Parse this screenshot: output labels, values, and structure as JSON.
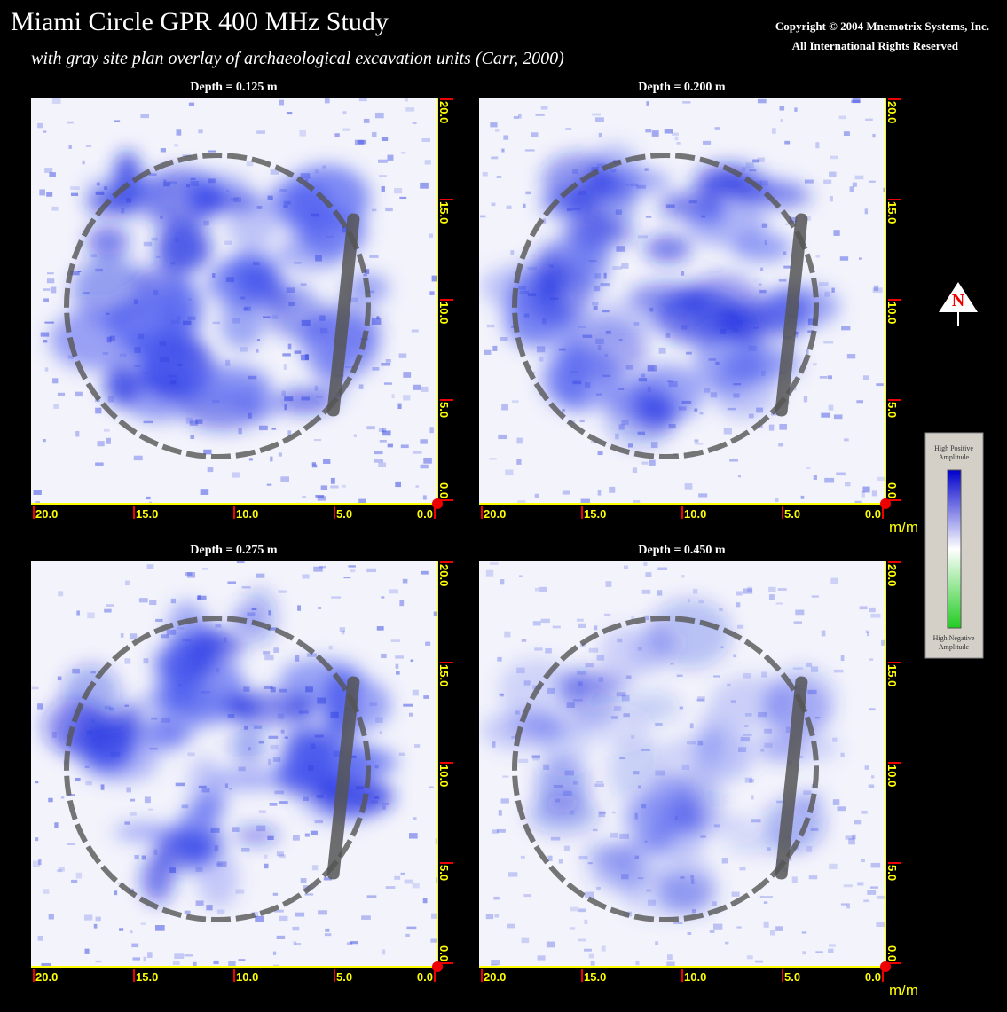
{
  "header": {
    "title": "Miami Circle GPR 400 MHz Study",
    "subtitle": "with gray site plan overlay of archaeological excavation units (Carr, 2000)",
    "copyright": [
      "Copyright © 2004 Mnemotrix Systems, Inc.",
      "All International Rights Reserved"
    ]
  },
  "panels": [
    {
      "title": "Depth = 0.125 m"
    },
    {
      "title": "Depth = 0.200 m"
    },
    {
      "title": "Depth = 0.275 m"
    },
    {
      "title": "Depth = 0.450 m"
    }
  ],
  "axis": {
    "x_labels": [
      "20.0",
      "15.0",
      "10.0",
      "5.0",
      "0.0"
    ],
    "y_labels": [
      "20.0",
      "15.0",
      "10.0",
      "5.0",
      "0.0"
    ],
    "unit": "m/m"
  },
  "north": "N",
  "legend": {
    "high": [
      "High Positive",
      "Amplitude"
    ],
    "low": [
      "High Negative",
      "Amplitude"
    ]
  }
}
